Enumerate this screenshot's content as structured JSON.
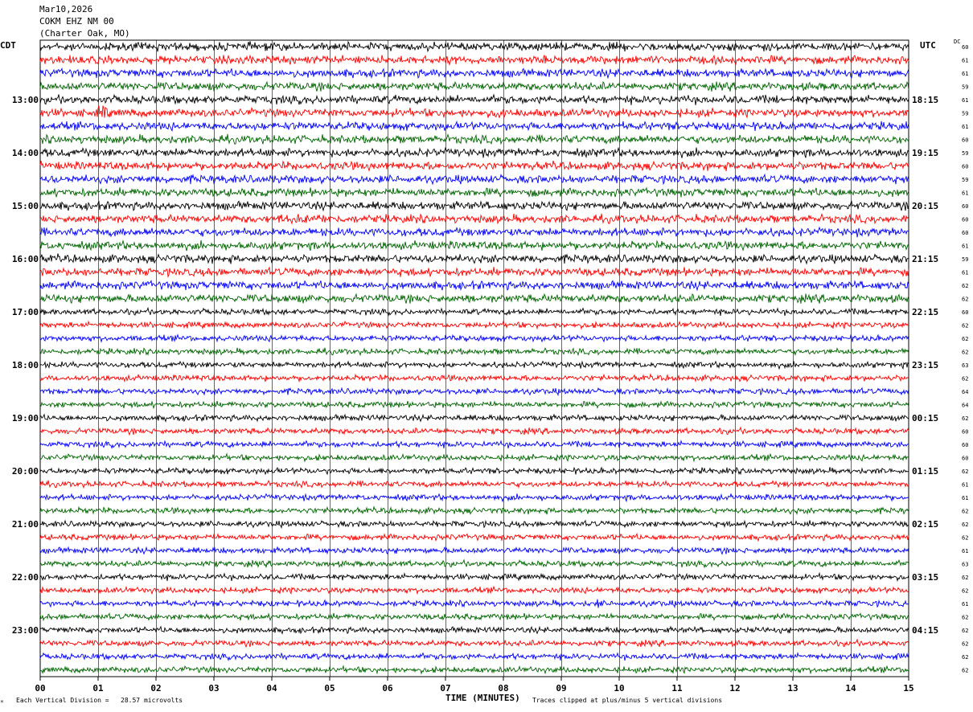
{
  "header": {
    "date": "Mar10,2026",
    "station": "COKM EHZ NM 00",
    "location": "(Charter Oak, MO)"
  },
  "labels": {
    "left_zone": "CDT",
    "right_zone": "UTC",
    "dc_header": "DC"
  },
  "footer": {
    "scale_note": "Each Vertical Division =   28.57 microvolts",
    "clip_note": "Traces clipped at plus/minus 5 vertical divisions",
    "corner_mark": "ᴹ"
  },
  "chart_data": {
    "type": "line",
    "xlabel": "TIME (MINUTES)",
    "xlim": [
      0,
      15
    ],
    "x_ticks": [
      "00",
      "01",
      "02",
      "03",
      "04",
      "05",
      "06",
      "07",
      "08",
      "09",
      "10",
      "11",
      "12",
      "13",
      "14",
      "15"
    ],
    "row_count": 48,
    "rows_per_hour": 4,
    "trace_colors": [
      "#000000",
      "#ff0000",
      "#0000ff",
      "#006400"
    ],
    "left_hour_labels": [
      "13:00",
      "14:00",
      "15:00",
      "16:00",
      "17:00",
      "18:00",
      "19:00",
      "20:00",
      "21:00",
      "22:00",
      "23:00"
    ],
    "right_hour_labels": [
      "18:15",
      "19:15",
      "20:15",
      "21:15",
      "22:15",
      "23:15",
      "00:15",
      "01:15",
      "02:15",
      "03:15",
      "04:15"
    ],
    "dc_offsets": [
      60,
      61,
      61,
      59,
      61,
      59,
      61,
      60,
      59,
      60,
      59,
      61,
      60,
      60,
      60,
      61,
      59,
      61,
      62,
      62,
      60,
      62,
      62,
      62,
      63,
      62,
      64,
      64,
      62,
      60,
      60,
      60,
      62,
      61,
      61,
      62,
      62,
      62,
      61,
      63,
      62,
      62,
      61,
      62,
      62,
      62,
      62,
      62
    ],
    "grid": true
  }
}
